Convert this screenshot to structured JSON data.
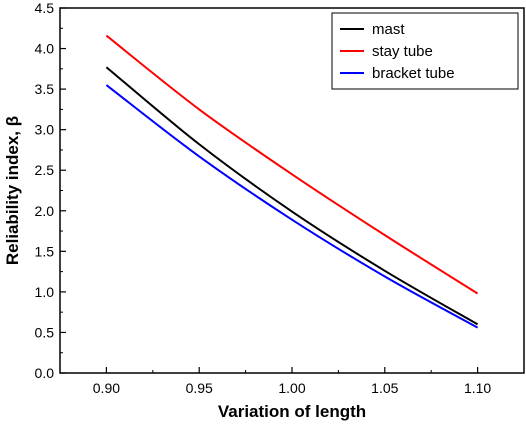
{
  "chart_data": {
    "type": "line",
    "xlabel": "Variation of length",
    "ylabel": "Reliability index, β",
    "xlim": [
      0.875,
      1.125
    ],
    "ylim": [
      0.0,
      4.5
    ],
    "xticks": [
      "0.90",
      "0.95",
      "1.00",
      "1.05",
      "1.10"
    ],
    "yticks": [
      "0.0",
      "0.5",
      "1.0",
      "1.5",
      "2.0",
      "2.5",
      "3.0",
      "3.5",
      "4.0",
      "4.5"
    ],
    "x": [
      0.9,
      0.95,
      1.0,
      1.05,
      1.1
    ],
    "series": [
      {
        "name": "mast",
        "color": "#000000",
        "values": [
          3.77,
          2.82,
          1.99,
          1.26,
          0.6
        ]
      },
      {
        "name": "stay tube",
        "color": "#ff0000",
        "values": [
          4.16,
          3.25,
          2.45,
          1.7,
          0.98
        ]
      },
      {
        "name": "bracket tube",
        "color": "#0000ff",
        "values": [
          3.55,
          2.67,
          1.89,
          1.19,
          0.56
        ]
      }
    ],
    "legend": "top-right",
    "grid": false
  }
}
